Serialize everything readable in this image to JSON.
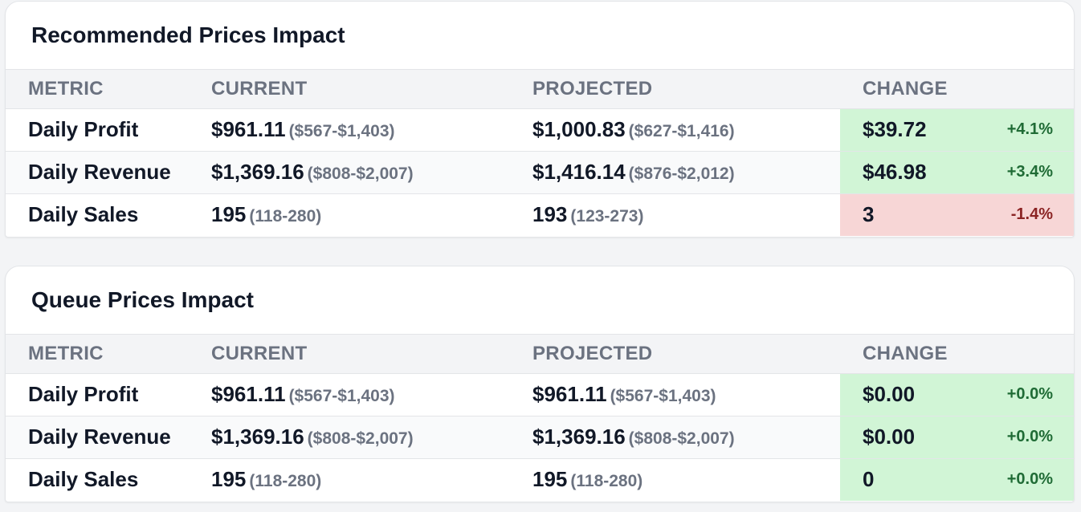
{
  "headers": {
    "metric": "METRIC",
    "current": "CURRENT",
    "projected": "PROJECTED",
    "change": "CHANGE"
  },
  "colors": {
    "positive_bg": "#d1f5d6",
    "negative_bg": "#f7d6d6",
    "positive_text": "#1f6b35",
    "negative_text": "#8b2424"
  },
  "recommended": {
    "title": "Recommended Prices Impact",
    "rows": [
      {
        "metric": "Daily Profit",
        "current": "$961.11",
        "current_range": "($567-$1,403)",
        "projected": "$1,000.83",
        "projected_range": "($627-$1,416)",
        "change": "$39.72",
        "pct": "+4.1%",
        "status": "positive"
      },
      {
        "metric": "Daily Revenue",
        "current": "$1,369.16",
        "current_range": "($808-$2,007)",
        "projected": "$1,416.14",
        "projected_range": "($876-$2,012)",
        "change": "$46.98",
        "pct": "+3.4%",
        "status": "positive"
      },
      {
        "metric": "Daily Sales",
        "current": "195",
        "current_range": "(118-280)",
        "projected": "193",
        "projected_range": "(123-273)",
        "change": "3",
        "pct": "-1.4%",
        "status": "negative"
      }
    ]
  },
  "queue": {
    "title": "Queue Prices Impact",
    "rows": [
      {
        "metric": "Daily Profit",
        "current": "$961.11",
        "current_range": "($567-$1,403)",
        "projected": "$961.11",
        "projected_range": "($567-$1,403)",
        "change": "$0.00",
        "pct": "+0.0%",
        "status": "positive"
      },
      {
        "metric": "Daily Revenue",
        "current": "$1,369.16",
        "current_range": "($808-$2,007)",
        "projected": "$1,369.16",
        "projected_range": "($808-$2,007)",
        "change": "$0.00",
        "pct": "+0.0%",
        "status": "positive"
      },
      {
        "metric": "Daily Sales",
        "current": "195",
        "current_range": "(118-280)",
        "projected": "195",
        "projected_range": "(118-280)",
        "change": "0",
        "pct": "+0.0%",
        "status": "positive"
      }
    ]
  }
}
